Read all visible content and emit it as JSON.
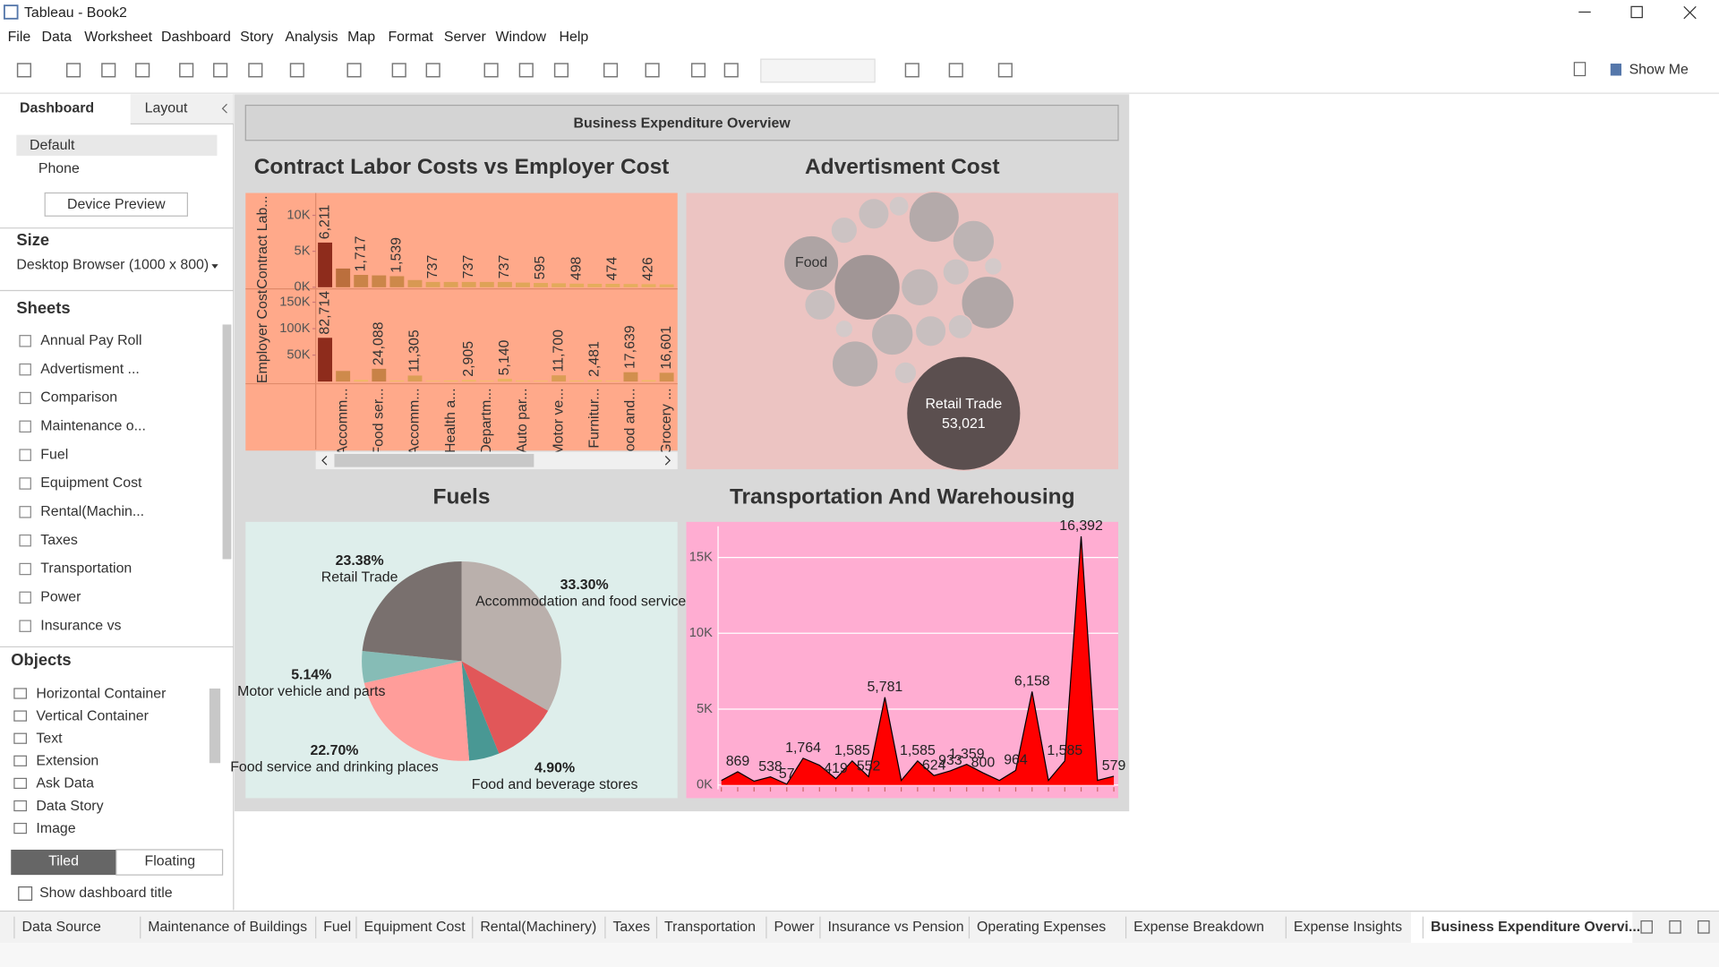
{
  "window": {
    "title": "Tableau - Book2"
  },
  "menu": [
    "File",
    "Data",
    "Worksheet",
    "Dashboard",
    "Story",
    "Analysis",
    "Map",
    "Format",
    "Server",
    "Window",
    "Help"
  ],
  "toolbar": {
    "show_me": "Show Me"
  },
  "side_panel": {
    "tabs": [
      "Dashboard",
      "Layout"
    ],
    "devices": [
      "Default",
      "Phone"
    ],
    "device_preview": "Device Preview",
    "size_heading": "Size",
    "size_value": "Desktop Browser (1000 x 800)",
    "sheets_heading": "Sheets",
    "sheets": [
      "Annual Pay Roll",
      "Advertisment ...",
      "Comparison",
      "Maintenance o...",
      "Fuel",
      "Equipment Cost",
      "Rental(Machin...",
      "Taxes",
      "Transportation",
      "Power",
      "Insurance vs"
    ],
    "objects_heading": "Objects",
    "objects": [
      "Horizontal Container",
      "Vertical Container",
      "Text",
      "Extension",
      "Ask Data",
      "Data Story",
      "Image"
    ],
    "layout_modes": [
      "Tiled",
      "Floating"
    ],
    "show_title": "Show dashboard title"
  },
  "sheet_tabs": [
    "Data Source",
    "Maintenance of Buildings",
    "Fuel",
    "Equipment Cost",
    "Rental(Machinery)",
    "Taxes",
    "Transportation",
    "Power",
    "Insurance vs Pension",
    "Operating Expenses",
    "Expense Breakdown",
    "Expense Insights",
    "Business Expenditure Overvi..."
  ],
  "dashboard": {
    "title": "Business Expenditure Overview"
  },
  "chart_data": [
    {
      "type": "bar",
      "title": "Contract Labor Costs vs Employer Cost",
      "categories": [
        null,
        "Accomm...",
        null,
        "Food ser...",
        null,
        "Accomm...",
        null,
        "Health a...",
        null,
        "Departm...",
        null,
        "Auto par...",
        null,
        "Motor ve...",
        null,
        "Furnitur...",
        null,
        "Food and...",
        null,
        "Grocery ..."
      ],
      "series": [
        {
          "name": "Contract Lab...",
          "values": [
            6211,
            2600,
            1717,
            1650,
            1539,
            1000,
            737,
            737,
            737,
            737,
            737,
            650,
            595,
            550,
            498,
            480,
            474,
            450,
            426,
            400
          ],
          "value_labels": [
            "6,211",
            null,
            "1,717",
            null,
            "1,539",
            null,
            "737",
            null,
            "737",
            null,
            "737",
            null,
            "595",
            null,
            "498",
            null,
            "474",
            null,
            "426",
            null
          ],
          "ylim": [
            0,
            12500
          ],
          "yticks": [
            {
              "value": 0,
              "label": "0K"
            },
            {
              "value": 5000,
              "label": "5K"
            },
            {
              "value": 10000,
              "label": "10K"
            }
          ]
        },
        {
          "name": "Employer Cost",
          "values": [
            82714,
            20000,
            3000,
            24088,
            2000,
            11305,
            1500,
            2000,
            2905,
            1500,
            5140,
            2000,
            1500,
            11700,
            2000,
            2481,
            1500,
            17639,
            2500,
            16601
          ],
          "value_labels": [
            "82,714",
            null,
            null,
            "24,088",
            null,
            "11,305",
            null,
            null,
            "2,905",
            null,
            "5,140",
            null,
            null,
            "11,700",
            null,
            "2,481",
            null,
            "17,639",
            null,
            "16,601"
          ],
          "ylim": [
            0,
            170000
          ],
          "yticks": [
            {
              "value": 50000,
              "label": "50K"
            },
            {
              "value": 100000,
              "label": "100K"
            },
            {
              "value": 150000,
              "label": "150K"
            }
          ]
        }
      ],
      "color_range": [
        "#fdd06e",
        "#8e2c1c"
      ]
    },
    {
      "type": "bubble",
      "title": "Advertisment Cost",
      "categories": [
        "Retail Trade",
        "Food",
        null,
        null,
        null,
        null,
        null,
        null,
        null,
        null,
        null,
        null,
        null,
        null,
        null,
        null,
        null,
        null,
        null
      ],
      "values": [
        53021,
        12255,
        17650,
        10373,
        7078,
        11295,
        8646,
        7078,
        5657,
        3837,
        3837,
        1588,
        2824,
        3837,
        2824,
        2373,
        1255,
        1961,
        1255
      ],
      "value_labels": [
        "53,021",
        null,
        null,
        null,
        null,
        null,
        null,
        null,
        null,
        null,
        null,
        null,
        null,
        null,
        null,
        null,
        null,
        null,
        null
      ],
      "color_range": [
        "#ddd4d4",
        "#5b4f4f"
      ]
    },
    {
      "type": "pie",
      "title": "Fuels",
      "categories": [
        "Accommodation and food services",
        null,
        "Food and beverage stores",
        "Food service and drinking places",
        "Motor vehicle and parts",
        "Retail Trade"
      ],
      "values": [
        33.3,
        10.58,
        4.9,
        22.7,
        5.14,
        23.38
      ],
      "value_labels": [
        "33.30%",
        null,
        "4.90%",
        "22.70%",
        "5.14%",
        "23.38%"
      ],
      "colors": [
        "#bab0ac",
        "#e15759",
        "#499894",
        "#ff9d9a",
        "#86bcb6",
        "#79706e"
      ]
    },
    {
      "type": "area",
      "title": "Transportation And Warehousing",
      "values": [
        300,
        869,
        250,
        538,
        57,
        1764,
        1300,
        419,
        1585,
        552,
        5781,
        300,
        1585,
        624,
        933,
        1359,
        800,
        300,
        964,
        6158,
        300,
        1585,
        16392,
        300,
        579
      ],
      "value_labels": [
        null,
        "869",
        null,
        "538",
        "57",
        "1,764",
        null,
        "419",
        "1,585",
        "552",
        "5,781",
        null,
        "1,585",
        "624",
        "933",
        "1,359",
        "800",
        null,
        "964",
        "6,158",
        null,
        "1,585",
        "16,392",
        null,
        "579"
      ],
      "ylim": [
        0,
        17200
      ],
      "yticks": [
        {
          "value": 0,
          "label": "0K"
        },
        {
          "value": 5000,
          "label": "5K"
        },
        {
          "value": 10000,
          "label": "10K"
        },
        {
          "value": 15000,
          "label": "15K"
        }
      ],
      "color": "#ff0000",
      "grid": true
    }
  ]
}
